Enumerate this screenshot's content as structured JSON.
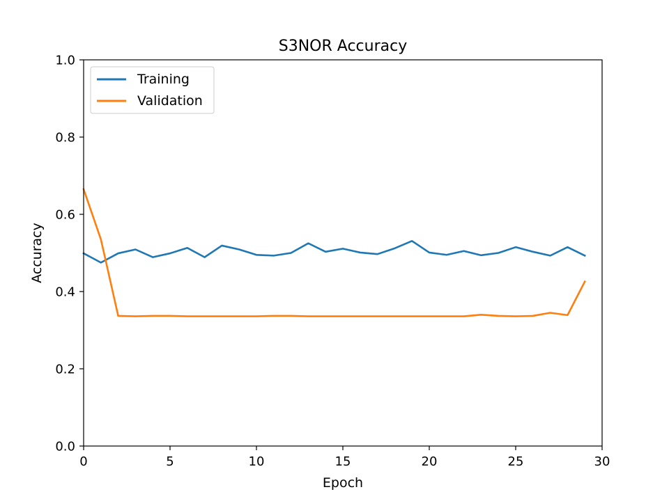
{
  "chart_data": {
    "type": "line",
    "title": "S3NOR Accuracy",
    "xlabel": "Epoch",
    "ylabel": "Accuracy",
    "xlim": [
      0,
      30
    ],
    "ylim": [
      0.0,
      1.0
    ],
    "xticks": [
      0,
      5,
      10,
      15,
      20,
      25,
      30
    ],
    "xtick_labels": [
      "0",
      "5",
      "10",
      "15",
      "20",
      "25",
      "30"
    ],
    "yticks": [
      0.0,
      0.2,
      0.4,
      0.6,
      0.8,
      1.0
    ],
    "ytick_labels": [
      "0.0",
      "0.2",
      "0.4",
      "0.6",
      "0.8",
      "1.0"
    ],
    "grid": false,
    "legend_position": "top-left",
    "x": [
      0,
      1,
      2,
      3,
      4,
      5,
      6,
      7,
      8,
      9,
      10,
      11,
      12,
      13,
      14,
      15,
      16,
      17,
      18,
      19,
      20,
      21,
      22,
      23,
      24,
      25,
      26,
      27,
      28,
      29
    ],
    "series": [
      {
        "name": "Training",
        "color": "#1f77b4",
        "values": [
          0.499,
          0.475,
          0.499,
          0.509,
          0.489,
          0.499,
          0.513,
          0.489,
          0.519,
          0.509,
          0.495,
          0.493,
          0.5,
          0.525,
          0.503,
          0.511,
          0.501,
          0.497,
          0.512,
          0.531,
          0.501,
          0.495,
          0.505,
          0.494,
          0.5,
          0.515,
          0.503,
          0.493,
          0.515,
          0.493
        ]
      },
      {
        "name": "Validation",
        "color": "#ff7f0e",
        "values": [
          0.665,
          0.535,
          0.337,
          0.336,
          0.337,
          0.337,
          0.336,
          0.336,
          0.336,
          0.336,
          0.336,
          0.337,
          0.337,
          0.336,
          0.336,
          0.336,
          0.336,
          0.336,
          0.336,
          0.336,
          0.336,
          0.336,
          0.336,
          0.34,
          0.337,
          0.336,
          0.337,
          0.345,
          0.339,
          0.426
        ]
      }
    ]
  }
}
